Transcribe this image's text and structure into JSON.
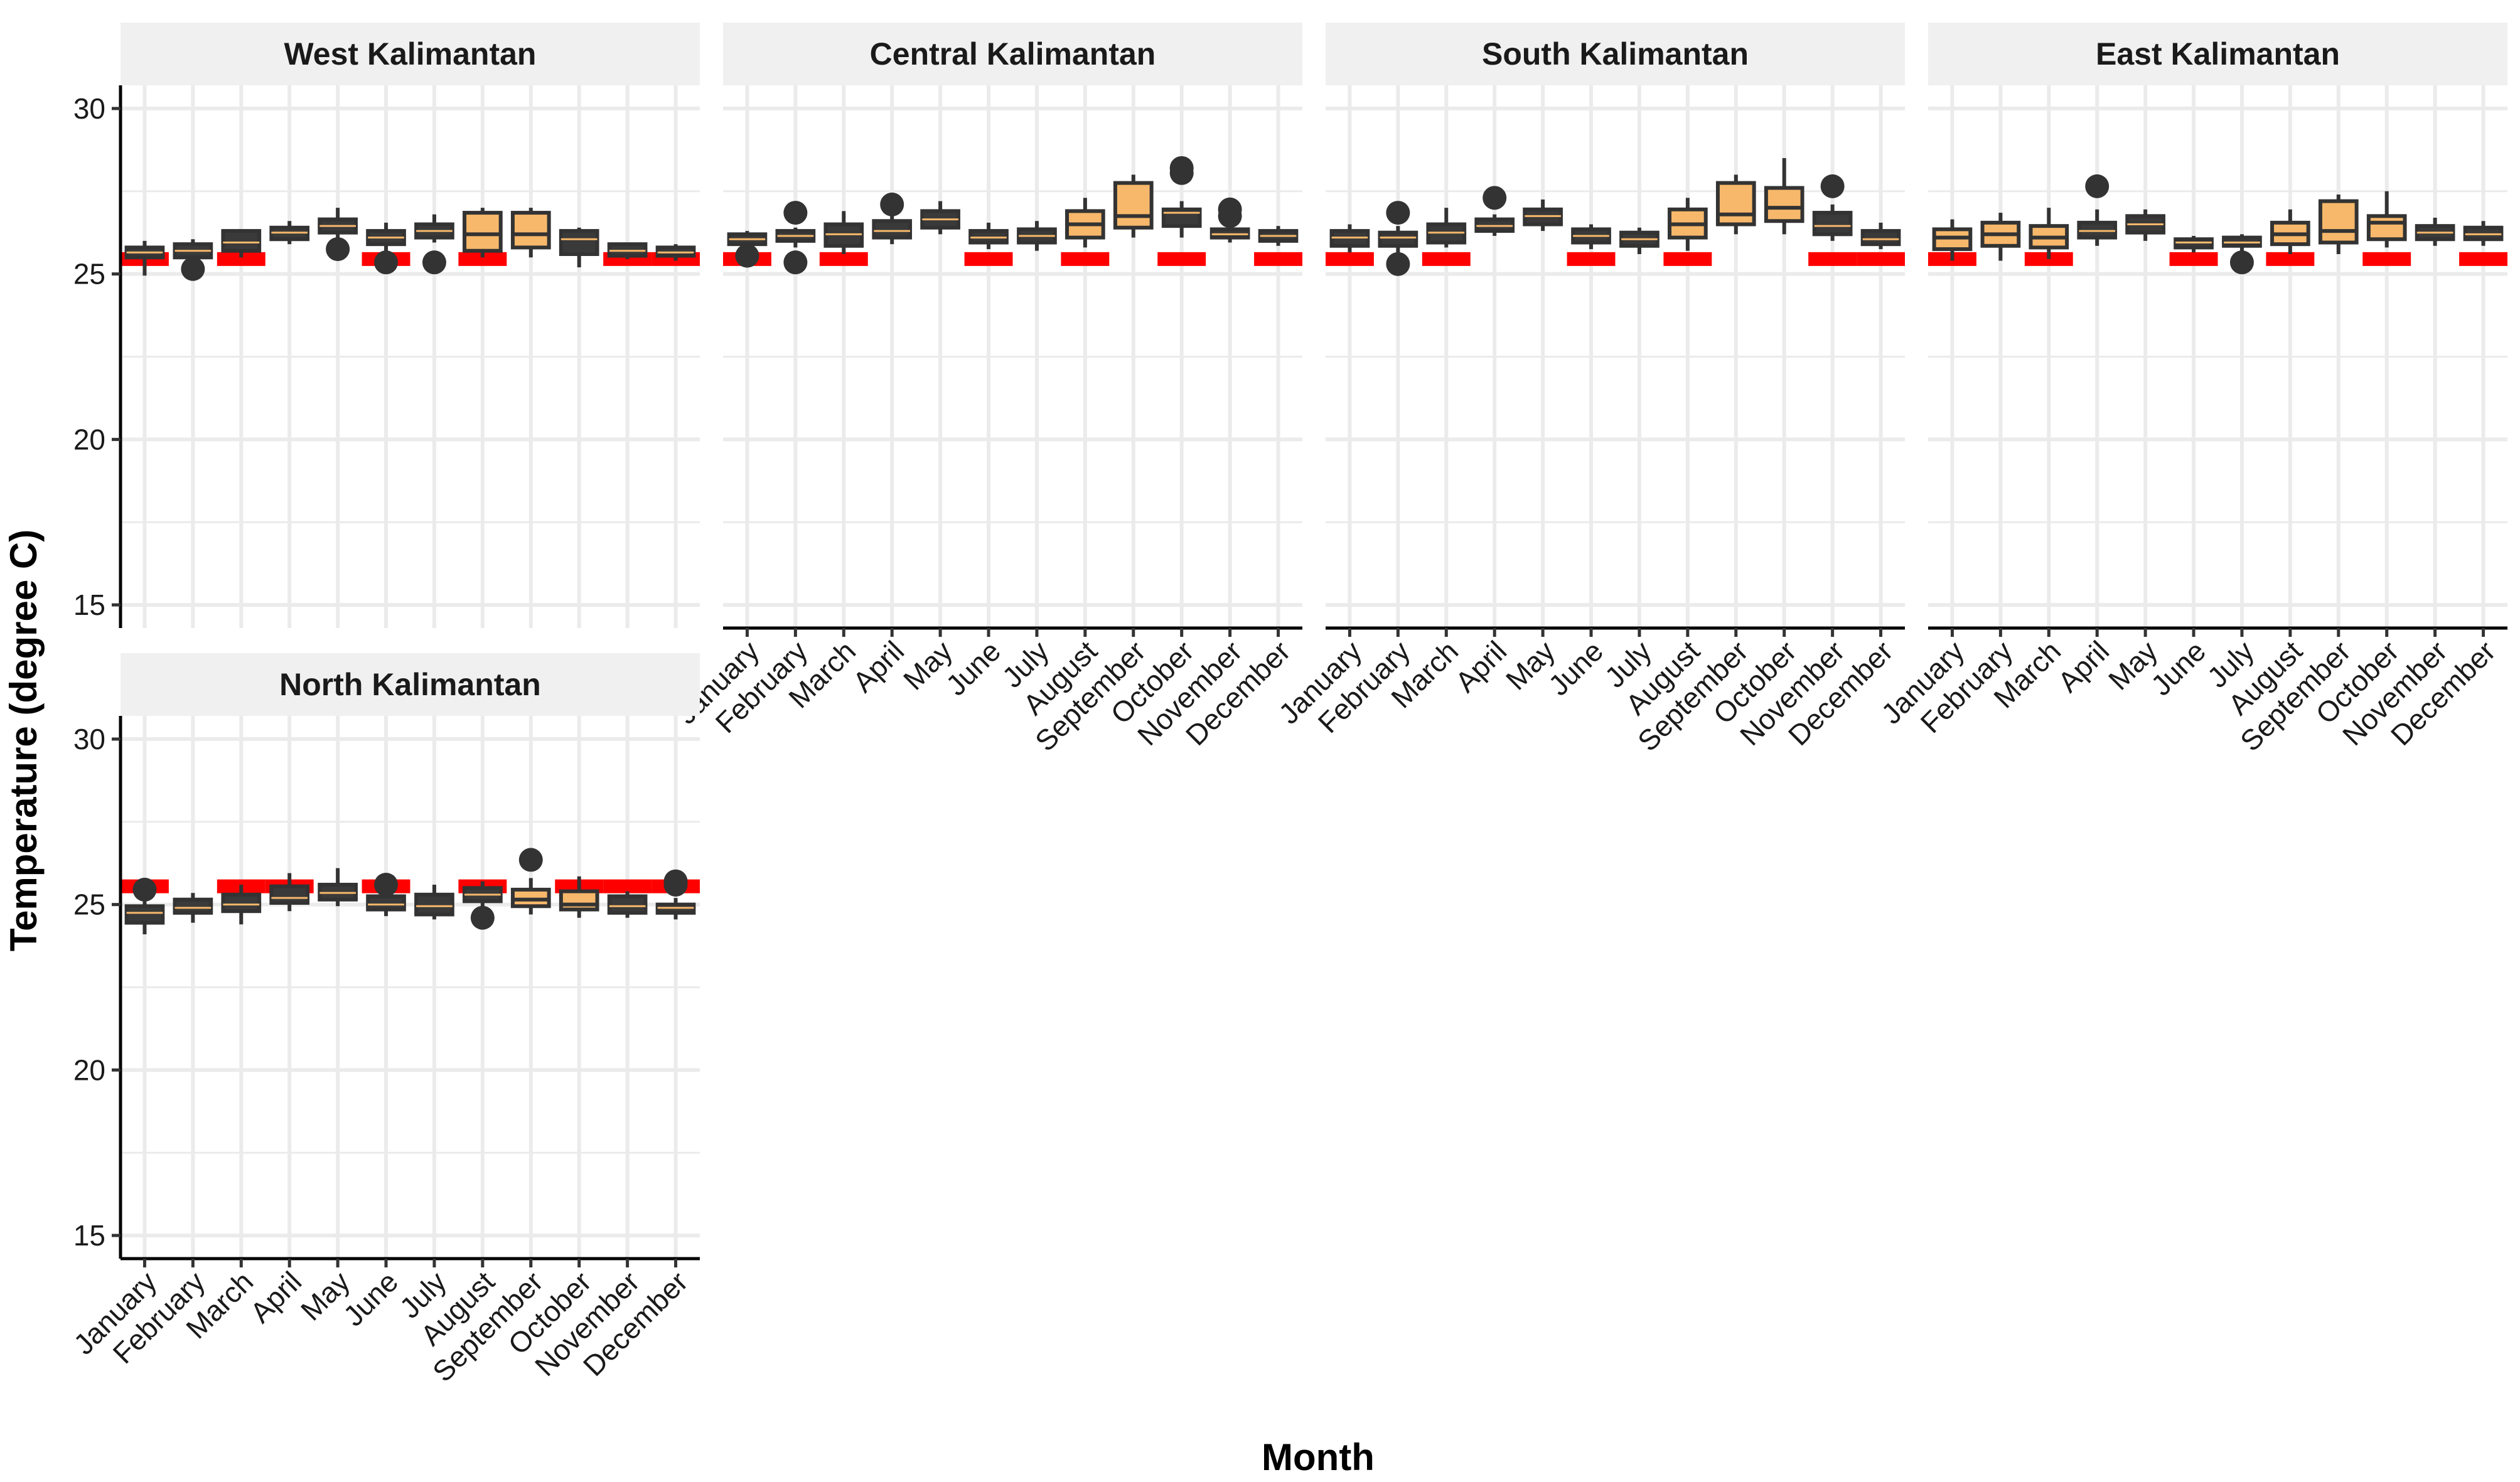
{
  "chart_data": {
    "type": "box",
    "xlabel": "Month",
    "ylabel": "Temperature (degree C)",
    "ylim": [
      14.3,
      30.7
    ],
    "yticks": [
      15,
      20,
      25,
      30
    ],
    "months": [
      "January",
      "February",
      "March",
      "April",
      "May",
      "June",
      "July",
      "August",
      "September",
      "October",
      "November",
      "December"
    ],
    "layout": "facet_wrap 4 columns, 2 rows",
    "grid": true,
    "colors": {
      "box_fill_dark": "#3a3a3a",
      "box_fill_light": "#f7b86b",
      "box_outline": "#333333",
      "reference_line": "#ff0000",
      "strip_background": "#f0f0f0",
      "grid": "#ebebeb"
    },
    "panels": [
      {
        "name": "West Kalimantan",
        "reference": 25.45,
        "reference_months": [
          1,
          3,
          6,
          8,
          11,
          12
        ],
        "boxes": [
          {
            "month": "January",
            "q1": 25.5,
            "median": 25.65,
            "q3": 25.8,
            "wlo": 24.95,
            "whi": 26.0,
            "out": [],
            "light": false
          },
          {
            "month": "February",
            "q1": 25.5,
            "median": 25.7,
            "q3": 25.9,
            "wlo": 25.35,
            "whi": 26.05,
            "out": [
              25.15
            ],
            "light": false
          },
          {
            "month": "March",
            "q1": 25.7,
            "median": 25.95,
            "q3": 26.3,
            "wlo": 25.5,
            "whi": 26.3,
            "out": [],
            "light": false
          },
          {
            "month": "April",
            "q1": 26.05,
            "median": 26.25,
            "q3": 26.4,
            "wlo": 25.9,
            "whi": 26.6,
            "out": [],
            "light": false
          },
          {
            "month": "May",
            "q1": 26.25,
            "median": 26.45,
            "q3": 26.65,
            "wlo": 26.1,
            "whi": 27.0,
            "out": [
              25.75
            ],
            "light": false
          },
          {
            "month": "June",
            "q1": 25.9,
            "median": 26.1,
            "q3": 26.3,
            "wlo": 25.7,
            "whi": 26.55,
            "out": [
              25.35
            ],
            "light": false
          },
          {
            "month": "July",
            "q1": 26.1,
            "median": 26.3,
            "q3": 26.5,
            "wlo": 25.95,
            "whi": 26.8,
            "out": [
              25.35
            ],
            "light": false
          },
          {
            "month": "August",
            "q1": 25.7,
            "median": 26.2,
            "q3": 26.85,
            "wlo": 25.5,
            "whi": 27.0,
            "out": [],
            "light": true
          },
          {
            "month": "September",
            "q1": 25.8,
            "median": 26.2,
            "q3": 26.85,
            "wlo": 25.5,
            "whi": 27.0,
            "out": [],
            "light": true
          },
          {
            "month": "October",
            "q1": 25.6,
            "median": 26.05,
            "q3": 26.3,
            "wlo": 25.2,
            "whi": 26.4,
            "out": [],
            "light": false
          },
          {
            "month": "November",
            "q1": 25.55,
            "median": 25.7,
            "q3": 25.9,
            "wlo": 25.45,
            "whi": 25.95,
            "out": [],
            "light": false
          },
          {
            "month": "December",
            "q1": 25.55,
            "median": 25.65,
            "q3": 25.8,
            "wlo": 25.4,
            "whi": 25.9,
            "out": [],
            "light": false
          }
        ]
      },
      {
        "name": "Central Kalimantan",
        "reference": 25.45,
        "reference_months": [
          1,
          3,
          6,
          8,
          10,
          12
        ],
        "boxes": [
          {
            "month": "January",
            "q1": 25.9,
            "median": 26.05,
            "q3": 26.2,
            "wlo": 25.55,
            "whi": 26.3,
            "out": [
              25.55
            ],
            "light": false
          },
          {
            "month": "February",
            "q1": 26.0,
            "median": 26.15,
            "q3": 26.3,
            "wlo": 25.8,
            "whi": 26.4,
            "out": [
              26.85,
              25.35
            ],
            "light": false
          },
          {
            "month": "March",
            "q1": 25.85,
            "median": 26.2,
            "q3": 26.5,
            "wlo": 25.6,
            "whi": 26.9,
            "out": [],
            "light": false
          },
          {
            "month": "April",
            "q1": 26.1,
            "median": 26.3,
            "q3": 26.6,
            "wlo": 25.9,
            "whi": 26.75,
            "out": [
              27.1
            ],
            "light": false
          },
          {
            "month": "May",
            "q1": 26.4,
            "median": 26.65,
            "q3": 26.9,
            "wlo": 26.2,
            "whi": 27.2,
            "out": [],
            "light": false
          },
          {
            "month": "June",
            "q1": 25.95,
            "median": 26.1,
            "q3": 26.3,
            "wlo": 25.75,
            "whi": 26.55,
            "out": [],
            "light": false
          },
          {
            "month": "July",
            "q1": 25.95,
            "median": 26.15,
            "q3": 26.35,
            "wlo": 25.7,
            "whi": 26.6,
            "out": [],
            "light": false
          },
          {
            "month": "August",
            "q1": 26.1,
            "median": 26.5,
            "q3": 26.9,
            "wlo": 25.8,
            "whi": 27.3,
            "out": [],
            "light": true
          },
          {
            "month": "September",
            "q1": 26.4,
            "median": 26.75,
            "q3": 27.75,
            "wlo": 26.1,
            "whi": 28.0,
            "out": [],
            "light": true
          },
          {
            "month": "October",
            "q1": 26.45,
            "median": 26.85,
            "q3": 26.95,
            "wlo": 26.1,
            "whi": 27.2,
            "out": [
              28.2,
              28.05
            ],
            "light": false
          },
          {
            "month": "November",
            "q1": 26.1,
            "median": 26.2,
            "q3": 26.35,
            "wlo": 25.95,
            "whi": 26.4,
            "out": [
              26.95,
              26.75
            ],
            "light": false
          },
          {
            "month": "December",
            "q1": 26.0,
            "median": 26.15,
            "q3": 26.3,
            "wlo": 25.85,
            "whi": 26.45,
            "out": [],
            "light": false
          }
        ]
      },
      {
        "name": "South Kalimantan",
        "reference": 25.45,
        "reference_months": [
          1,
          3,
          6,
          8,
          11,
          12
        ],
        "boxes": [
          {
            "month": "January",
            "q1": 25.85,
            "median": 26.1,
            "q3": 26.3,
            "wlo": 25.65,
            "whi": 26.5,
            "out": [],
            "light": false
          },
          {
            "month": "February",
            "q1": 25.85,
            "median": 26.1,
            "q3": 26.25,
            "wlo": 25.6,
            "whi": 26.45,
            "out": [
              26.85,
              25.3
            ],
            "light": false
          },
          {
            "month": "March",
            "q1": 25.95,
            "median": 26.25,
            "q3": 26.5,
            "wlo": 25.8,
            "whi": 27.0,
            "out": [],
            "light": false
          },
          {
            "month": "April",
            "q1": 26.3,
            "median": 26.45,
            "q3": 26.65,
            "wlo": 26.15,
            "whi": 26.8,
            "out": [
              27.3
            ],
            "light": false
          },
          {
            "month": "May",
            "q1": 26.5,
            "median": 26.75,
            "q3": 26.95,
            "wlo": 26.3,
            "whi": 27.25,
            "out": [],
            "light": false
          },
          {
            "month": "June",
            "q1": 25.95,
            "median": 26.15,
            "q3": 26.35,
            "wlo": 25.75,
            "whi": 26.5,
            "out": [],
            "light": false
          },
          {
            "month": "July",
            "q1": 25.85,
            "median": 26.05,
            "q3": 26.25,
            "wlo": 25.6,
            "whi": 26.4,
            "out": [],
            "light": false
          },
          {
            "month": "August",
            "q1": 26.1,
            "median": 26.5,
            "q3": 26.95,
            "wlo": 25.7,
            "whi": 27.3,
            "out": [],
            "light": true
          },
          {
            "month": "September",
            "q1": 26.5,
            "median": 26.8,
            "q3": 27.75,
            "wlo": 26.2,
            "whi": 28.0,
            "out": [],
            "light": true
          },
          {
            "month": "October",
            "q1": 26.6,
            "median": 27.0,
            "q3": 27.6,
            "wlo": 26.2,
            "whi": 28.5,
            "out": [],
            "light": true
          },
          {
            "month": "November",
            "q1": 26.2,
            "median": 26.45,
            "q3": 26.85,
            "wlo": 26.0,
            "whi": 27.1,
            "out": [
              27.65
            ],
            "light": false
          },
          {
            "month": "December",
            "q1": 25.9,
            "median": 26.05,
            "q3": 26.3,
            "wlo": 25.75,
            "whi": 26.55,
            "out": [],
            "light": false
          }
        ]
      },
      {
        "name": "East Kalimantan",
        "reference": 25.45,
        "reference_months": [
          1,
          3,
          6,
          8,
          10,
          12
        ],
        "boxes": [
          {
            "month": "January",
            "q1": 25.75,
            "median": 26.1,
            "q3": 26.35,
            "wlo": 25.4,
            "whi": 26.65,
            "out": [],
            "light": true
          },
          {
            "month": "February",
            "q1": 25.85,
            "median": 26.2,
            "q3": 26.55,
            "wlo": 25.4,
            "whi": 26.85,
            "out": [],
            "light": true
          },
          {
            "month": "March",
            "q1": 25.8,
            "median": 26.1,
            "q3": 26.45,
            "wlo": 25.45,
            "whi": 27.0,
            "out": [],
            "light": true
          },
          {
            "month": "April",
            "q1": 26.1,
            "median": 26.3,
            "q3": 26.55,
            "wlo": 25.85,
            "whi": 26.95,
            "out": [
              27.65
            ],
            "light": false
          },
          {
            "month": "May",
            "q1": 26.25,
            "median": 26.5,
            "q3": 26.75,
            "wlo": 26.0,
            "whi": 26.95,
            "out": [],
            "light": false
          },
          {
            "month": "June",
            "q1": 25.8,
            "median": 25.95,
            "q3": 26.05,
            "wlo": 25.65,
            "whi": 26.15,
            "out": [],
            "light": false
          },
          {
            "month": "July",
            "q1": 25.85,
            "median": 25.95,
            "q3": 26.1,
            "wlo": 25.7,
            "whi": 26.2,
            "out": [
              25.35
            ],
            "light": false
          },
          {
            "month": "August",
            "q1": 25.9,
            "median": 26.2,
            "q3": 26.55,
            "wlo": 25.6,
            "whi": 26.95,
            "out": [],
            "light": true
          },
          {
            "month": "September",
            "q1": 25.95,
            "median": 26.3,
            "q3": 27.2,
            "wlo": 25.6,
            "whi": 27.4,
            "out": [],
            "light": true
          },
          {
            "month": "October",
            "q1": 26.05,
            "median": 26.55,
            "q3": 26.75,
            "wlo": 25.8,
            "whi": 27.5,
            "out": [],
            "light": true
          },
          {
            "month": "November",
            "q1": 26.05,
            "median": 26.25,
            "q3": 26.45,
            "wlo": 25.85,
            "whi": 26.7,
            "out": [],
            "light": false
          },
          {
            "month": "December",
            "q1": 26.05,
            "median": 26.2,
            "q3": 26.4,
            "wlo": 25.85,
            "whi": 26.6,
            "out": [],
            "light": false
          }
        ]
      },
      {
        "name": "North Kalimantan",
        "reference": 25.55,
        "reference_months": [
          1,
          3,
          4,
          6,
          8,
          10,
          11,
          12
        ],
        "boxes": [
          {
            "month": "January",
            "q1": 24.45,
            "median": 24.75,
            "q3": 24.95,
            "wlo": 24.1,
            "whi": 25.15,
            "out": [
              25.45
            ],
            "light": false
          },
          {
            "month": "February",
            "q1": 24.75,
            "median": 24.9,
            "q3": 25.15,
            "wlo": 24.45,
            "whi": 25.35,
            "out": [],
            "light": false
          },
          {
            "month": "March",
            "q1": 24.8,
            "median": 25.0,
            "q3": 25.3,
            "wlo": 24.4,
            "whi": 25.6,
            "out": [],
            "light": false
          },
          {
            "month": "April",
            "q1": 25.05,
            "median": 25.2,
            "q3": 25.55,
            "wlo": 24.8,
            "whi": 25.95,
            "out": [],
            "light": false
          },
          {
            "month": "May",
            "q1": 25.15,
            "median": 25.35,
            "q3": 25.6,
            "wlo": 24.95,
            "whi": 26.1,
            "out": [],
            "light": false
          },
          {
            "month": "June",
            "q1": 24.85,
            "median": 25.0,
            "q3": 25.25,
            "wlo": 24.65,
            "whi": 25.45,
            "out": [
              25.6
            ],
            "light": false
          },
          {
            "month": "July",
            "q1": 24.7,
            "median": 24.95,
            "q3": 25.3,
            "wlo": 24.55,
            "whi": 25.6,
            "out": [],
            "light": false
          },
          {
            "month": "August",
            "q1": 25.1,
            "median": 25.3,
            "q3": 25.5,
            "wlo": 24.9,
            "whi": 25.7,
            "out": [
              24.6
            ],
            "light": false
          },
          {
            "month": "September",
            "q1": 24.95,
            "median": 25.15,
            "q3": 25.45,
            "wlo": 24.7,
            "whi": 25.8,
            "out": [
              26.35
            ],
            "light": true
          },
          {
            "month": "October",
            "q1": 24.85,
            "median": 25.0,
            "q3": 25.4,
            "wlo": 24.6,
            "whi": 25.85,
            "out": [],
            "light": true
          },
          {
            "month": "November",
            "q1": 24.75,
            "median": 24.95,
            "q3": 25.25,
            "wlo": 24.6,
            "whi": 25.4,
            "out": [],
            "light": false
          },
          {
            "month": "December",
            "q1": 24.75,
            "median": 24.9,
            "q3": 25.0,
            "wlo": 24.55,
            "whi": 25.2,
            "out": [
              25.6,
              25.7
            ],
            "light": false
          }
        ]
      }
    ]
  }
}
